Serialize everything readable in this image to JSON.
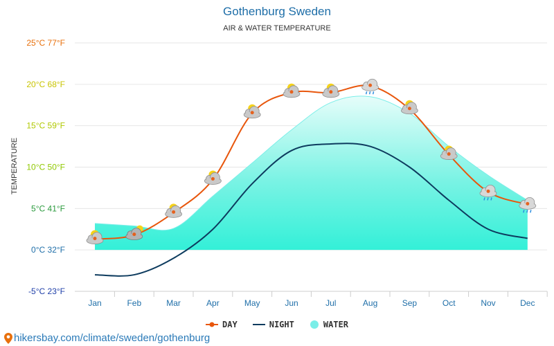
{
  "title": "Gothenburg Sweden",
  "subtitle": "AIR & WATER TEMPERATURE",
  "source": "hikersbay.com/climate/sweden/gothenburg",
  "colors": {
    "day": "#e8560c",
    "night": "#0d3b5e",
    "water_fill": "#33f0d8",
    "water_line": "#7aeee8",
    "title": "#1e6ea8",
    "grid": "#e6e6e6"
  },
  "chart_data": {
    "type": "line",
    "title": "Gothenburg Sweden",
    "subtitle": "AIR & WATER TEMPERATURE",
    "xlabel": "",
    "ylabel": "TEMPERATURE",
    "ylim": [
      -5,
      25
    ],
    "categories": [
      "Jan",
      "Feb",
      "Mar",
      "Apr",
      "May",
      "Jun",
      "Jul",
      "Aug",
      "Sep",
      "Oct",
      "Nov",
      "Dec"
    ],
    "y_ticks": [
      {
        "value": 25,
        "label": "25°C 77°F",
        "color": "#e8700c"
      },
      {
        "value": 20,
        "label": "20°C 68°F",
        "color": "#c8c400"
      },
      {
        "value": 15,
        "label": "15°C 59°F",
        "color": "#b0c800"
      },
      {
        "value": 10,
        "label": "10°C 50°F",
        "color": "#8fc800"
      },
      {
        "value": 5,
        "label": "5°C 41°F",
        "color": "#2a9a3c"
      },
      {
        "value": 0,
        "label": "0°C 32°F",
        "color": "#1e6ea8"
      },
      {
        "value": -5,
        "label": "-5°C 23°F",
        "color": "#1e3ea8"
      }
    ],
    "series": [
      {
        "name": "DAY",
        "values": [
          1.3,
          1.8,
          4.5,
          8.5,
          16.5,
          19.0,
          19.0,
          19.8,
          17.0,
          11.5,
          7.0,
          5.5
        ]
      },
      {
        "name": "NIGHT",
        "values": [
          -3.0,
          -3.0,
          -1.0,
          2.5,
          8.0,
          12.0,
          12.8,
          12.5,
          10.0,
          6.0,
          2.5,
          1.4
        ]
      },
      {
        "name": "WATER",
        "values": [
          3.2,
          2.9,
          2.6,
          6.5,
          10.5,
          14.5,
          17.8,
          18.5,
          16.5,
          12.5,
          9.0,
          6.0
        ]
      }
    ],
    "weather_icons": [
      "partly-cloudy-icon",
      "cloudy-icon",
      "partly-cloudy-icon",
      "partly-cloudy-icon",
      "partly-cloudy-icon",
      "partly-cloudy-icon",
      "partly-cloudy-icon",
      "rain-cloud-icon",
      "partly-cloudy-icon",
      "partly-cloudy-icon",
      "rain-cloud-icon",
      "rain-cloud-icon"
    ],
    "legend": [
      "DAY",
      "NIGHT",
      "WATER"
    ],
    "legend_position": "bottom-center",
    "grid": true
  }
}
